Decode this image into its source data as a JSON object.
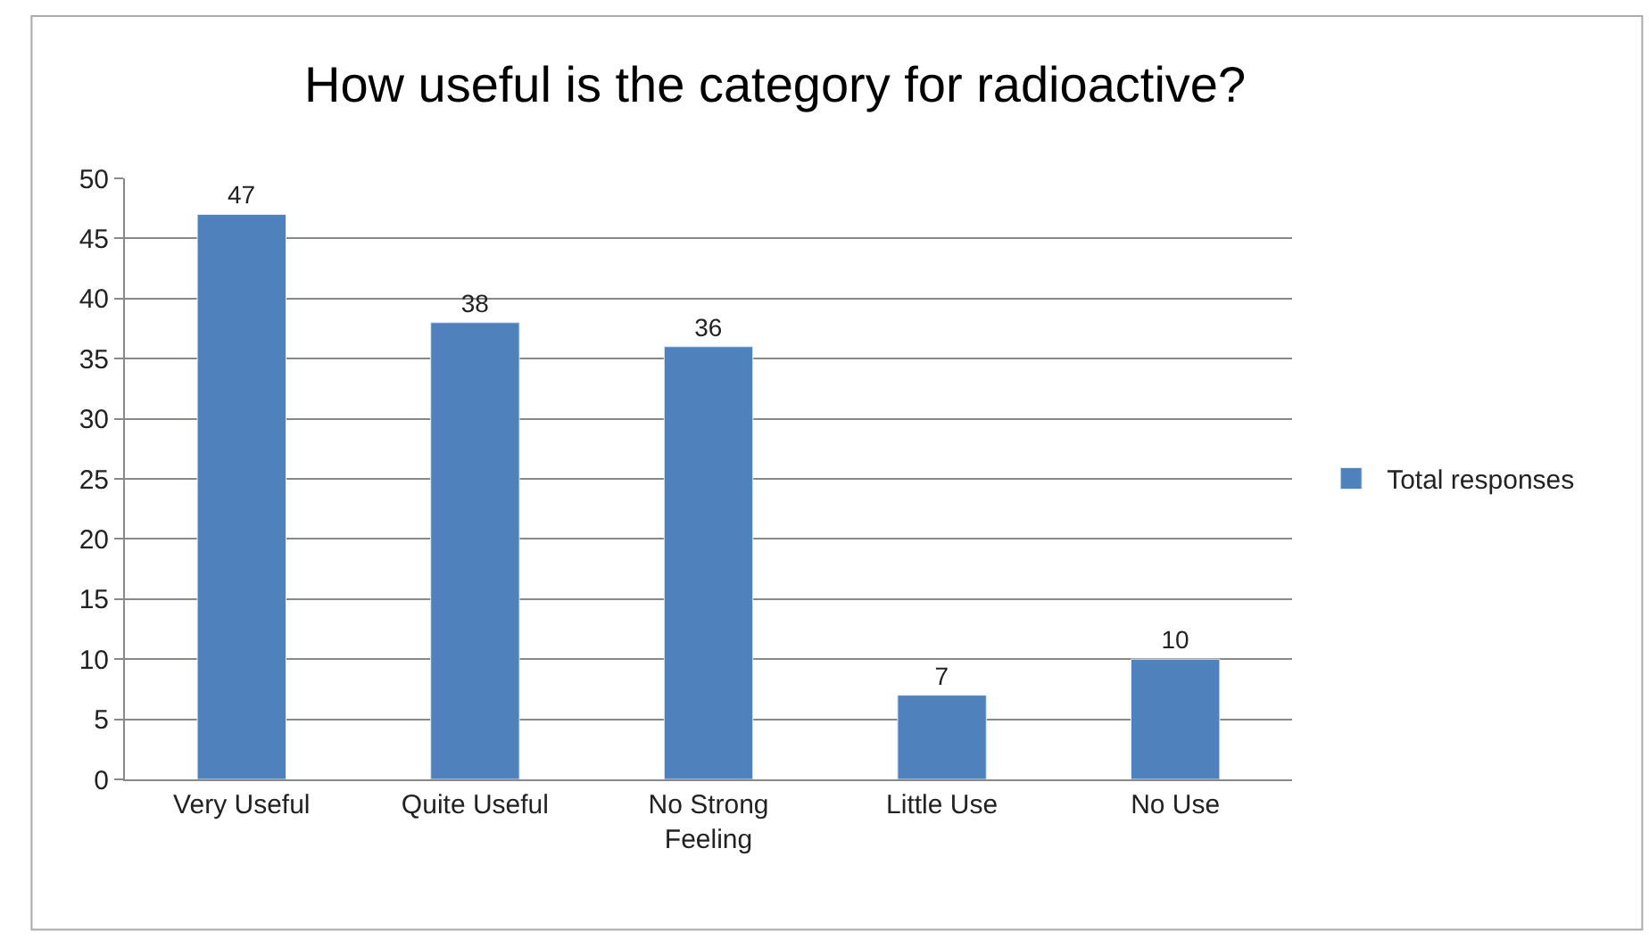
{
  "chart_data": {
    "type": "bar",
    "title": "How useful is the category for radioactive?",
    "categories": [
      "Very Useful",
      "Quite Useful",
      "No Strong Feeling",
      "Little Use",
      "No Use"
    ],
    "series": [
      {
        "name": "Total responses",
        "color": "#4f81bd",
        "values": [
          47,
          38,
          36,
          7,
          10
        ]
      }
    ],
    "ylim": [
      0,
      50
    ],
    "yticks": [
      0,
      5,
      10,
      15,
      20,
      25,
      30,
      35,
      40,
      45,
      50
    ],
    "grid": "y",
    "legend": "right",
    "data_labels": true
  }
}
